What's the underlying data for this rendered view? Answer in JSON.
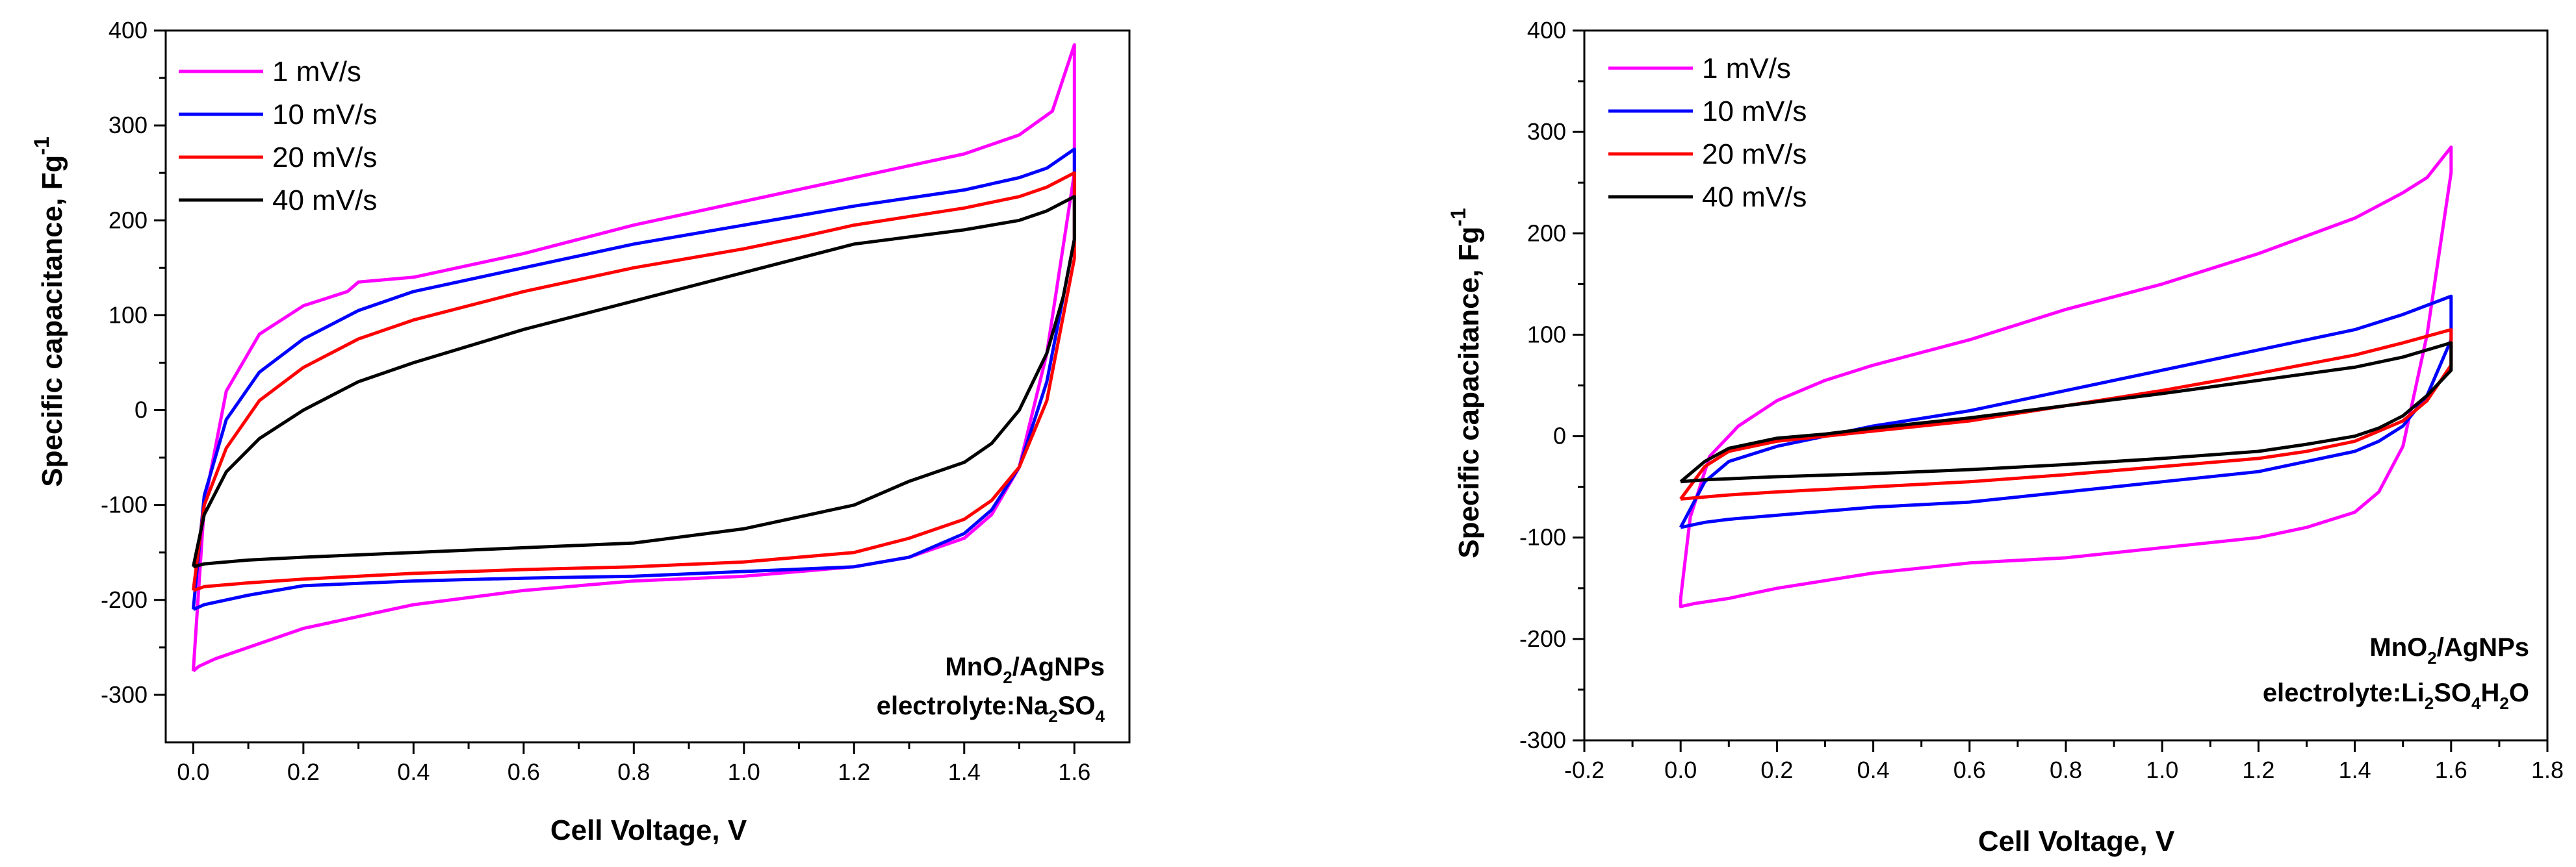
{
  "chart_data": [
    {
      "type": "line",
      "title": "",
      "xlabel": "Cell Voltage, V",
      "ylabel": "Specific capacitance, Fg",
      "ylabel_superscript": "-1",
      "xlim": [
        -0.05,
        1.7
      ],
      "ylim": [
        -350,
        400
      ],
      "xticks": [
        0.0,
        0.2,
        0.4,
        0.6,
        0.8,
        1.0,
        1.2,
        1.4,
        1.6
      ],
      "xtick_labels": [
        "0.0",
        "0.2",
        "0.4",
        "0.6",
        "0.8",
        "1.0",
        "1.2",
        "1.4",
        "1.6"
      ],
      "yticks": [
        -300,
        -200,
        -100,
        0,
        100,
        200,
        300,
        400
      ],
      "ytick_labels": [
        "-300",
        "-200",
        "-100",
        "0",
        "100",
        "200",
        "300",
        "400"
      ],
      "legend_position": "top-left",
      "annotation": {
        "line1": {
          "before": "MnO",
          "sub": "2",
          "after": "/AgNPs"
        },
        "line2": {
          "before": "electrolyte:Na",
          "sub1": "2",
          "mid": "SO",
          "sub2": "4"
        }
      },
      "series": [
        {
          "name": "1 mV/s",
          "color": "#ff00ff",
          "x": [
            0.0,
            0.02,
            0.06,
            0.12,
            0.2,
            0.28,
            0.3,
            0.4,
            0.6,
            0.8,
            1.0,
            1.2,
            1.4,
            1.5,
            1.56,
            1.6,
            1.6,
            1.55,
            1.5,
            1.45,
            1.4,
            1.3,
            1.2,
            1.0,
            0.8,
            0.6,
            0.4,
            0.2,
            0.1,
            0.04,
            0.01,
            0.0,
            0.0
          ],
          "y": [
            -275,
            -100,
            20,
            80,
            110,
            125,
            135,
            140,
            165,
            195,
            220,
            245,
            270,
            290,
            315,
            385,
            250,
            60,
            -60,
            -110,
            -135,
            -155,
            -165,
            -175,
            -180,
            -190,
            -205,
            -230,
            -250,
            -262,
            -270,
            -275,
            -275
          ]
        },
        {
          "name": "10 mV/s",
          "color": "#0000ff",
          "x": [
            0.0,
            0.02,
            0.06,
            0.12,
            0.2,
            0.3,
            0.4,
            0.6,
            0.8,
            1.0,
            1.1,
            1.2,
            1.4,
            1.5,
            1.55,
            1.6,
            1.6,
            1.55,
            1.5,
            1.45,
            1.4,
            1.3,
            1.2,
            1.0,
            0.8,
            0.6,
            0.4,
            0.2,
            0.1,
            0.02,
            0.0
          ],
          "y": [
            -210,
            -90,
            -10,
            40,
            75,
            105,
            125,
            150,
            175,
            195,
            205,
            215,
            232,
            245,
            255,
            275,
            180,
            30,
            -60,
            -105,
            -130,
            -155,
            -165,
            -170,
            -175,
            -177,
            -180,
            -185,
            -195,
            -205,
            -210
          ]
        },
        {
          "name": "20 mV/s",
          "color": "#ff0000",
          "x": [
            0.0,
            0.02,
            0.06,
            0.12,
            0.2,
            0.3,
            0.4,
            0.6,
            0.8,
            1.0,
            1.1,
            1.2,
            1.4,
            1.5,
            1.55,
            1.6,
            1.6,
            1.55,
            1.5,
            1.45,
            1.4,
            1.3,
            1.2,
            1.0,
            0.8,
            0.6,
            0.4,
            0.2,
            0.1,
            0.02,
            0.0
          ],
          "y": [
            -190,
            -100,
            -40,
            10,
            45,
            75,
            95,
            125,
            150,
            170,
            182,
            195,
            213,
            225,
            235,
            250,
            160,
            10,
            -60,
            -95,
            -115,
            -135,
            -150,
            -160,
            -165,
            -168,
            -172,
            -178,
            -182,
            -186,
            -190
          ]
        },
        {
          "name": "40 mV/s",
          "color": "#000000",
          "x": [
            0.0,
            0.02,
            0.06,
            0.12,
            0.2,
            0.3,
            0.4,
            0.6,
            0.8,
            1.0,
            1.1,
            1.2,
            1.4,
            1.5,
            1.55,
            1.6,
            1.6,
            1.58,
            1.55,
            1.5,
            1.45,
            1.4,
            1.3,
            1.2,
            1.0,
            0.8,
            0.6,
            0.4,
            0.2,
            0.1,
            0.02,
            0.0
          ],
          "y": [
            -165,
            -110,
            -65,
            -30,
            0,
            30,
            50,
            85,
            115,
            145,
            160,
            175,
            190,
            200,
            210,
            225,
            180,
            120,
            60,
            0,
            -35,
            -55,
            -75,
            -100,
            -125,
            -140,
            -145,
            -150,
            -155,
            -158,
            -162,
            -165
          ]
        }
      ]
    },
    {
      "type": "line",
      "title": "",
      "xlabel": "Cell Voltage, V",
      "ylabel": "Specific capacitance, Fg",
      "ylabel_superscript": "-1",
      "xlim": [
        -0.2,
        1.8
      ],
      "ylim": [
        -300,
        400
      ],
      "xticks": [
        -0.2,
        0.0,
        0.2,
        0.4,
        0.6,
        0.8,
        1.0,
        1.2,
        1.4,
        1.6,
        1.8
      ],
      "xtick_labels": [
        "-0.2",
        "0.0",
        "0.2",
        "0.4",
        "0.6",
        "0.8",
        "1.0",
        "1.2",
        "1.4",
        "1.6",
        "1.8"
      ],
      "yticks": [
        -300,
        -200,
        -100,
        0,
        100,
        200,
        300,
        400
      ],
      "ytick_labels": [
        "-300",
        "-200",
        "-100",
        "0",
        "100",
        "200",
        "300",
        "400"
      ],
      "legend_position": "top-left",
      "annotation": {
        "line1": {
          "before": "MnO",
          "sub": "2",
          "after": "/AgNPs"
        },
        "line2": {
          "before": "electrolyte:Li",
          "sub1": "2",
          "mid": "SO",
          "sub2": "4",
          "mid2": "H",
          "sub3": "2",
          "after": "O"
        }
      },
      "series": [
        {
          "name": "1 mV/s",
          "color": "#ff00ff",
          "x": [
            0.0,
            0.02,
            0.06,
            0.12,
            0.2,
            0.3,
            0.4,
            0.6,
            0.8,
            1.0,
            1.2,
            1.4,
            1.5,
            1.55,
            1.6,
            1.6,
            1.55,
            1.5,
            1.45,
            1.4,
            1.3,
            1.2,
            1.0,
            0.8,
            0.6,
            0.4,
            0.2,
            0.1,
            0.03,
            0.0,
            0.0
          ],
          "y": [
            -160,
            -80,
            -20,
            10,
            35,
            55,
            70,
            95,
            125,
            150,
            180,
            215,
            240,
            255,
            285,
            260,
            100,
            -10,
            -55,
            -75,
            -90,
            -100,
            -110,
            -120,
            -125,
            -135,
            -150,
            -160,
            -165,
            -168,
            -160
          ]
        },
        {
          "name": "10 mV/s",
          "color": "#0000ff",
          "x": [
            0.0,
            0.05,
            0.1,
            0.2,
            0.3,
            0.4,
            0.6,
            0.8,
            1.0,
            1.2,
            1.4,
            1.5,
            1.6,
            1.6,
            1.55,
            1.5,
            1.45,
            1.4,
            1.3,
            1.2,
            1.0,
            0.8,
            0.6,
            0.4,
            0.2,
            0.1,
            0.05,
            0.0
          ],
          "y": [
            -90,
            -45,
            -25,
            -10,
            0,
            10,
            25,
            45,
            65,
            85,
            105,
            120,
            138,
            95,
            40,
            10,
            -5,
            -15,
            -25,
            -35,
            -45,
            -55,
            -65,
            -70,
            -78,
            -82,
            -85,
            -90
          ]
        },
        {
          "name": "20 mV/s",
          "color": "#ff0000",
          "x": [
            0.0,
            0.05,
            0.1,
            0.2,
            0.3,
            0.4,
            0.6,
            0.8,
            1.0,
            1.2,
            1.4,
            1.5,
            1.6,
            1.6,
            1.55,
            1.5,
            1.45,
            1.4,
            1.3,
            1.2,
            1.0,
            0.8,
            0.6,
            0.4,
            0.2,
            0.1,
            0.05,
            0.0
          ],
          "y": [
            -62,
            -30,
            -15,
            -5,
            0,
            5,
            15,
            30,
            45,
            62,
            80,
            92,
            105,
            70,
            35,
            15,
            5,
            -5,
            -15,
            -22,
            -30,
            -38,
            -45,
            -50,
            -55,
            -58,
            -60,
            -62
          ]
        },
        {
          "name": "40 mV/s",
          "color": "#000000",
          "x": [
            0.0,
            0.05,
            0.1,
            0.2,
            0.3,
            0.4,
            0.6,
            0.8,
            1.0,
            1.2,
            1.4,
            1.5,
            1.6,
            1.6,
            1.55,
            1.5,
            1.45,
            1.4,
            1.3,
            1.2,
            1.0,
            0.8,
            0.6,
            0.4,
            0.2,
            0.1,
            0.05,
            0.0
          ],
          "y": [
            -45,
            -25,
            -12,
            -2,
            2,
            8,
            18,
            30,
            42,
            55,
            68,
            78,
            92,
            65,
            40,
            20,
            8,
            0,
            -8,
            -15,
            -22,
            -28,
            -33,
            -37,
            -40,
            -42,
            -43,
            -45
          ]
        }
      ]
    }
  ]
}
